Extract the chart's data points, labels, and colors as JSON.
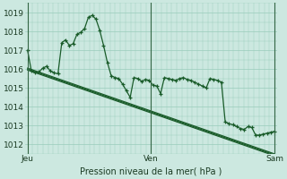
{
  "xlabel": "Pression niveau de la mer( hPa )",
  "xtick_labels": [
    "Jeu",
    "Ven",
    "Sam"
  ],
  "xtick_positions": [
    0,
    48,
    96
  ],
  "ylim": [
    1011.5,
    1019.5
  ],
  "yticks": [
    1012,
    1013,
    1014,
    1015,
    1016,
    1017,
    1018,
    1019
  ],
  "bg_color": "#cce8e0",
  "grid_color": "#99ccbb",
  "line_color": "#1a5c2a",
  "vline_color": "#336644",
  "main_line": [
    1017.0,
    1015.9,
    1015.8,
    1015.85,
    1016.05,
    1016.15,
    1015.9,
    1015.8,
    1015.75,
    1017.4,
    1017.55,
    1017.25,
    1017.35,
    1017.85,
    1017.95,
    1018.15,
    1018.75,
    1018.85,
    1018.65,
    1018.05,
    1017.25,
    1016.35,
    1015.65,
    1015.55,
    1015.5,
    1015.2,
    1014.85,
    1014.5,
    1015.55,
    1015.5,
    1015.35,
    1015.45,
    1015.4,
    1015.15,
    1015.1,
    1014.7,
    1015.55,
    1015.5,
    1015.45,
    1015.4,
    1015.5,
    1015.55,
    1015.45,
    1015.4,
    1015.3,
    1015.2,
    1015.1,
    1015.0,
    1015.5,
    1015.45,
    1015.4,
    1015.3,
    1013.2,
    1013.1,
    1013.05,
    1012.95,
    1012.85,
    1012.8,
    1012.95,
    1012.9,
    1012.5,
    1012.5,
    1012.55,
    1012.6,
    1012.65,
    1012.7
  ],
  "smooth_line1": [
    1015.95,
    1015.88,
    1015.81,
    1015.74,
    1015.67,
    1015.6,
    1015.53,
    1015.46,
    1015.39,
    1015.32,
    1015.25,
    1015.18,
    1015.11,
    1015.04,
    1014.97,
    1014.9,
    1014.83,
    1014.76,
    1014.69,
    1014.62,
    1014.55,
    1014.48,
    1014.41,
    1014.34,
    1014.27,
    1014.2,
    1014.13,
    1014.06,
    1013.99,
    1013.92,
    1013.85,
    1013.78,
    1013.71,
    1013.64,
    1013.57,
    1013.5,
    1013.43,
    1013.36,
    1013.29,
    1013.22,
    1013.15,
    1013.08,
    1013.01,
    1012.94,
    1012.87,
    1012.8,
    1012.73,
    1012.66,
    1012.59,
    1012.52,
    1012.45,
    1012.38,
    1012.31,
    1012.24,
    1012.17,
    1012.1,
    1012.03,
    1011.96,
    1011.89,
    1011.82,
    1011.75,
    1011.68,
    1011.61,
    1011.54,
    1011.47,
    1011.4
  ],
  "smooth_line2": [
    1016.0,
    1015.93,
    1015.86,
    1015.79,
    1015.72,
    1015.65,
    1015.58,
    1015.51,
    1015.44,
    1015.37,
    1015.3,
    1015.23,
    1015.16,
    1015.09,
    1015.02,
    1014.95,
    1014.88,
    1014.81,
    1014.74,
    1014.67,
    1014.6,
    1014.53,
    1014.46,
    1014.39,
    1014.32,
    1014.25,
    1014.18,
    1014.11,
    1014.04,
    1013.97,
    1013.9,
    1013.83,
    1013.76,
    1013.69,
    1013.62,
    1013.55,
    1013.48,
    1013.41,
    1013.34,
    1013.27,
    1013.2,
    1013.13,
    1013.06,
    1012.99,
    1012.92,
    1012.85,
    1012.78,
    1012.71,
    1012.64,
    1012.57,
    1012.5,
    1012.43,
    1012.36,
    1012.29,
    1012.22,
    1012.15,
    1012.08,
    1012.01,
    1011.94,
    1011.87,
    1011.8,
    1011.73,
    1011.66,
    1011.59,
    1011.52,
    1011.45
  ],
  "smooth_line3": [
    1016.05,
    1015.98,
    1015.91,
    1015.84,
    1015.77,
    1015.7,
    1015.63,
    1015.56,
    1015.49,
    1015.42,
    1015.35,
    1015.28,
    1015.21,
    1015.14,
    1015.07,
    1015.0,
    1014.93,
    1014.86,
    1014.79,
    1014.72,
    1014.65,
    1014.58,
    1014.51,
    1014.44,
    1014.37,
    1014.3,
    1014.23,
    1014.16,
    1014.09,
    1014.02,
    1013.95,
    1013.88,
    1013.81,
    1013.74,
    1013.67,
    1013.6,
    1013.53,
    1013.46,
    1013.39,
    1013.32,
    1013.25,
    1013.18,
    1013.11,
    1013.04,
    1012.97,
    1012.9,
    1012.83,
    1012.76,
    1012.69,
    1012.62,
    1012.55,
    1012.48,
    1012.41,
    1012.34,
    1012.27,
    1012.2,
    1012.13,
    1012.06,
    1011.99,
    1011.92,
    1011.85,
    1011.78,
    1011.71,
    1011.64,
    1011.57,
    1011.5
  ]
}
